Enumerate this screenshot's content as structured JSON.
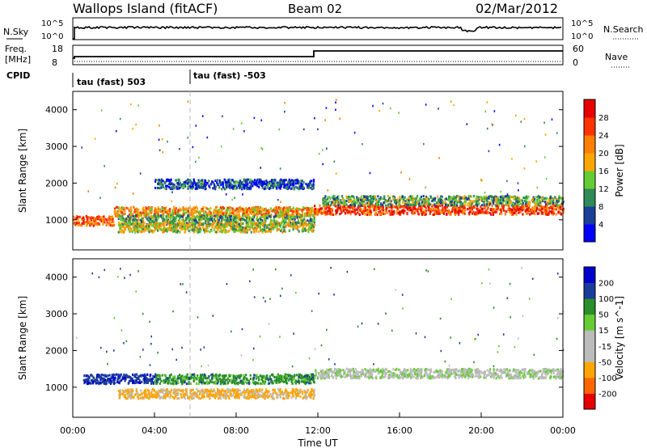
{
  "header": {
    "title": "Wallops Island (fitACF)",
    "beam": "Beam 02",
    "date": "02/Mar/2012"
  },
  "noise_panel": {
    "left_label": "N.Sky",
    "right_label": "N.Search",
    "left_ticks": [
      "10^5",
      "10^0"
    ],
    "right_ticks": [
      "10^5",
      "10^0"
    ]
  },
  "freq_panel": {
    "left_label_1": "Freq.",
    "left_label_2": "[MHz]",
    "right_label": "Nave",
    "left_ticks": [
      "18",
      "8"
    ],
    "right_ticks": [
      "60",
      "0"
    ]
  },
  "cpid_panel": {
    "label": "CPID",
    "mode_1": "tau (fast) 503",
    "mode_2": "tau (fast) -503"
  },
  "colors": {
    "power": [
      "#0000ff",
      "#1b3f99",
      "#2e8b57",
      "#66cc33",
      "#ffa500",
      "#ff7f00",
      "#ff3300",
      "#e60000"
    ],
    "velocity": [
      "#e60000",
      "#ff6600",
      "#ffa500",
      "#bcbcbc",
      "#bcbcbc",
      "#66cc33",
      "#2a8f2a",
      "#1a3d99",
      "#0000cc"
    ]
  },
  "chart_data": [
    {
      "type": "heatmap",
      "name": "power",
      "ylabel": "Slant Range [km]",
      "xlim": [
        "00:00",
        "24:00"
      ],
      "ylim": [
        180,
        4500
      ],
      "yticks": [
        1000,
        2000,
        3000,
        4000
      ],
      "colorbar_label": "Power [dB]",
      "colorbar_ticks": [
        "4",
        "8",
        "12",
        "16",
        "20",
        "24",
        "28"
      ],
      "colorbar_range": [
        0,
        32
      ],
      "echo_bands": [
        {
          "t_start": 0.0,
          "t_end": 2.0,
          "range_center": 1000,
          "value": 24
        },
        {
          "t_start": 2.0,
          "t_end": 11.8,
          "range_center": 1250,
          "value": 20
        },
        {
          "t_start": 2.2,
          "t_end": 11.8,
          "range_center": 1020,
          "value": 12
        },
        {
          "t_start": 2.2,
          "t_end": 11.8,
          "range_center": 820,
          "value": 16
        },
        {
          "t_start": 4.0,
          "t_end": 11.8,
          "range_center": 2000,
          "value": 6
        },
        {
          "t_start": 11.8,
          "t_end": 24.0,
          "range_center": 1300,
          "value": 26
        },
        {
          "t_start": 12.2,
          "t_end": 24.0,
          "range_center": 1550,
          "value": 12
        }
      ]
    },
    {
      "type": "heatmap",
      "name": "velocity",
      "ylabel": "Slant Range [km]",
      "xlabel": "Time UT",
      "xlim": [
        "00:00",
        "24:00"
      ],
      "xticks": [
        "00:00",
        "04:00",
        "08:00",
        "12:00",
        "16:00",
        "20:00",
        "00:00"
      ],
      "ylim": [
        180,
        4500
      ],
      "yticks": [
        1000,
        2000,
        3000,
        4000
      ],
      "colorbar_label": "Velocity [m s^-1]",
      "colorbar_ticks": [
        "-200",
        "-100",
        "-50",
        "-15",
        "15",
        "50",
        "100",
        "200"
      ],
      "echo_bands": [
        {
          "t_start": 0.5,
          "t_end": 4.0,
          "range_center": 1250,
          "value": 180
        },
        {
          "t_start": 4.0,
          "t_end": 11.8,
          "range_center": 1250,
          "value": 70
        },
        {
          "t_start": 2.2,
          "t_end": 11.8,
          "range_center": 850,
          "value": -60
        },
        {
          "t_start": 11.8,
          "t_end": 24.0,
          "range_center": 1400,
          "value": 0
        }
      ]
    }
  ]
}
